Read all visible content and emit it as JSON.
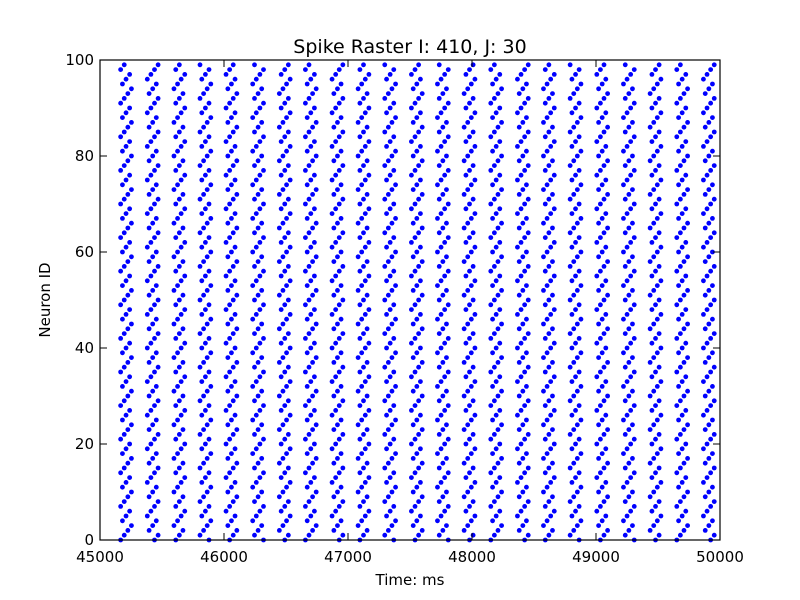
{
  "chart_data": {
    "type": "scatter",
    "title": "Spike Raster I: 410, J: 30",
    "xlabel": "Time: ms",
    "ylabel": "Neuron ID",
    "xlim": [
      45000,
      50000
    ],
    "ylim": [
      0,
      100
    ],
    "xticks": [
      "45000",
      "46000",
      "47000",
      "48000",
      "49000",
      "50000"
    ],
    "yticks": [
      "0",
      "20",
      "40",
      "60",
      "80",
      "100"
    ],
    "grid": false,
    "marker_color": "#0000ff",
    "neuron_id_range": [
      0,
      99
    ],
    "burst_times_ms": [
      45210,
      45425,
      45640,
      45850,
      46060,
      46275,
      46490,
      46700,
      46915,
      47125,
      47340,
      47555,
      47765,
      47980,
      48195,
      48410,
      48620,
      48835,
      49050,
      49265,
      49480,
      49695,
      49910
    ]
  }
}
